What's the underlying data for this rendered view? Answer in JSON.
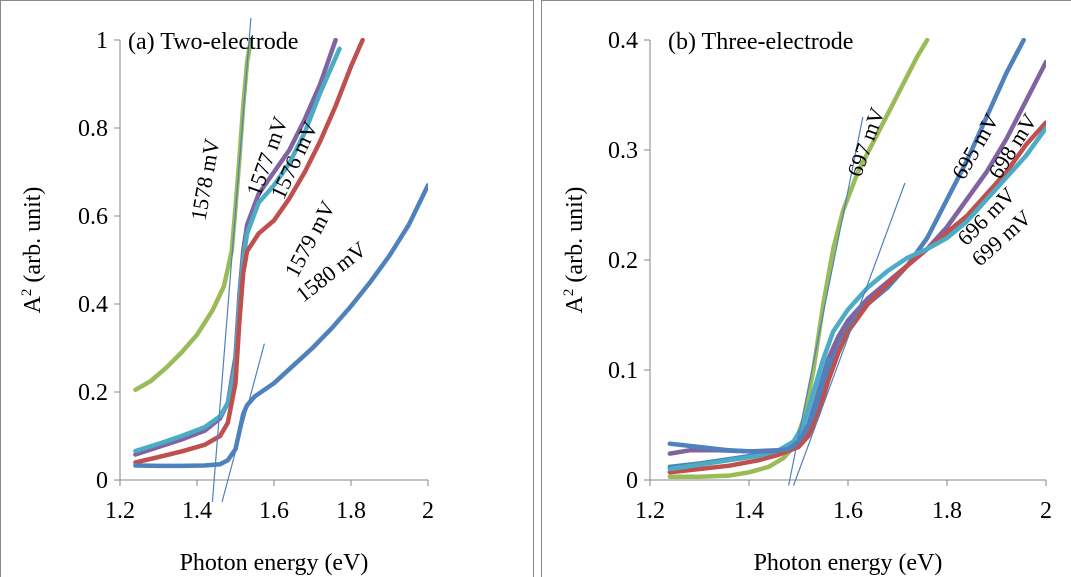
{
  "chart_data": [
    {
      "type": "line",
      "title": "(a) Two-electrode",
      "xlabel": "Photon energy (eV)",
      "ylabel_main": "A",
      "ylabel_sup": "2",
      "ylabel_rest": " (arb. unit)",
      "xlim": [
        1.2,
        2.0
      ],
      "ylim": [
        0,
        1.0
      ],
      "xticks": [
        1.2,
        1.4,
        1.6,
        1.8,
        2.0
      ],
      "xticklabels": [
        "1.2",
        "1.4",
        "1.6",
        "1.8",
        "2"
      ],
      "yticks": [
        0,
        0.2,
        0.4,
        0.6,
        0.8,
        1.0
      ],
      "yticklabels": [
        "0",
        "0.2",
        "0.4",
        "0.6",
        "0.8",
        "1"
      ],
      "grid": false,
      "series": [
        {
          "name": "1578 mV",
          "color": "#9bbb59",
          "x": [
            1.24,
            1.28,
            1.32,
            1.36,
            1.4,
            1.44,
            1.47,
            1.49,
            1.5,
            1.51,
            1.52,
            1.53,
            1.54
          ],
          "y": [
            0.205,
            0.225,
            0.255,
            0.29,
            0.33,
            0.385,
            0.44,
            0.52,
            0.62,
            0.73,
            0.85,
            0.95,
            1.0
          ]
        },
        {
          "name": "1577 mV",
          "color": "#8064a2",
          "x": [
            1.24,
            1.3,
            1.36,
            1.42,
            1.46,
            1.48,
            1.5,
            1.51,
            1.52,
            1.53,
            1.56,
            1.6,
            1.64,
            1.68,
            1.72,
            1.76
          ],
          "y": [
            0.058,
            0.075,
            0.092,
            0.112,
            0.14,
            0.175,
            0.28,
            0.42,
            0.52,
            0.58,
            0.65,
            0.7,
            0.75,
            0.82,
            0.9,
            1.0
          ]
        },
        {
          "name": "1576 mV",
          "color": "#4bacc6",
          "x": [
            1.24,
            1.3,
            1.36,
            1.42,
            1.46,
            1.48,
            1.5,
            1.51,
            1.52,
            1.53,
            1.56,
            1.6,
            1.64,
            1.68,
            1.72,
            1.77
          ],
          "y": [
            0.066,
            0.082,
            0.1,
            0.12,
            0.145,
            0.175,
            0.26,
            0.4,
            0.5,
            0.56,
            0.63,
            0.67,
            0.72,
            0.79,
            0.88,
            0.98
          ]
        },
        {
          "name": "1579 mV",
          "color": "#c0504d",
          "x": [
            1.24,
            1.3,
            1.36,
            1.42,
            1.46,
            1.48,
            1.5,
            1.51,
            1.52,
            1.53,
            1.56,
            1.6,
            1.64,
            1.68,
            1.72,
            1.76,
            1.8,
            1.83
          ],
          "y": [
            0.04,
            0.052,
            0.065,
            0.08,
            0.1,
            0.13,
            0.22,
            0.36,
            0.47,
            0.52,
            0.56,
            0.59,
            0.64,
            0.7,
            0.77,
            0.85,
            0.94,
            1.0
          ]
        },
        {
          "name": "1580 mV",
          "color": "#4f81bd",
          "x": [
            1.24,
            1.3,
            1.36,
            1.42,
            1.46,
            1.48,
            1.5,
            1.51,
            1.52,
            1.53,
            1.55,
            1.6,
            1.65,
            1.7,
            1.75,
            1.8,
            1.85,
            1.9,
            1.95,
            2.0
          ],
          "y": [
            0.033,
            0.032,
            0.032,
            0.033,
            0.036,
            0.045,
            0.07,
            0.11,
            0.15,
            0.17,
            0.19,
            0.22,
            0.26,
            0.3,
            0.345,
            0.395,
            0.45,
            0.51,
            0.58,
            0.67
          ]
        }
      ],
      "tangents": [
        {
          "color": "#4f81bd",
          "x": [
            1.44,
            1.54
          ],
          "y": [
            -0.05,
            1.05
          ]
        },
        {
          "color": "#4f81bd",
          "x": [
            1.465,
            1.575
          ],
          "y": [
            -0.05,
            0.31
          ]
        }
      ],
      "annotations": [
        {
          "text": "1578 mV",
          "x": 1.44,
          "y": 0.68,
          "rotate": -80
        },
        {
          "text": "1577 mV",
          "x": 1.6,
          "y": 0.73,
          "rotate": -70
        },
        {
          "text": "1576 mV",
          "x": 1.67,
          "y": 0.72,
          "rotate": -65
        },
        {
          "text": "1579 mV",
          "x": 1.71,
          "y": 0.54,
          "rotate": -62
        },
        {
          "text": "1580 mV",
          "x": 1.76,
          "y": 0.46,
          "rotate": -38
        }
      ]
    },
    {
      "type": "line",
      "title": "(b) Three-electrode",
      "xlabel": "Photon energy (eV)",
      "ylabel_main": "A",
      "ylabel_sup": "2",
      "ylabel_rest": " (arb. unit)",
      "xlim": [
        1.2,
        2.0
      ],
      "ylim": [
        0,
        0.4
      ],
      "xticks": [
        1.2,
        1.4,
        1.6,
        1.8,
        2.0
      ],
      "xticklabels": [
        "1.2",
        "1.4",
        "1.6",
        "1.8",
        "2"
      ],
      "yticks": [
        0,
        0.1,
        0.2,
        0.3,
        0.4
      ],
      "yticklabels": [
        "0",
        "0.1",
        "0.2",
        "0.3",
        "0.4"
      ],
      "grid": false,
      "series": [
        {
          "name": "697 mV",
          "color": "#9bbb59",
          "x": [
            1.24,
            1.3,
            1.36,
            1.4,
            1.44,
            1.47,
            1.49,
            1.51,
            1.53,
            1.55,
            1.57,
            1.59,
            1.62,
            1.66,
            1.7,
            1.74,
            1.76
          ],
          "y": [
            0.003,
            0.003,
            0.004,
            0.007,
            0.012,
            0.02,
            0.03,
            0.055,
            0.1,
            0.16,
            0.21,
            0.245,
            0.28,
            0.315,
            0.35,
            0.385,
            0.4
          ]
        },
        {
          "name": "695 mV",
          "color": "#4f81bd",
          "x": [
            1.24,
            1.3,
            1.36,
            1.42,
            1.46,
            1.5,
            1.52,
            1.54,
            1.56,
            1.58,
            1.6,
            1.64,
            1.68,
            1.72,
            1.76,
            1.8,
            1.84,
            1.88,
            1.92,
            1.955
          ],
          "y": [
            0.012,
            0.015,
            0.019,
            0.023,
            0.027,
            0.032,
            0.045,
            0.07,
            0.1,
            0.125,
            0.14,
            0.16,
            0.175,
            0.195,
            0.22,
            0.255,
            0.29,
            0.33,
            0.37,
            0.4
          ]
        },
        {
          "name": "698 mV",
          "color": "#8064a2",
          "x": [
            1.24,
            1.28,
            1.34,
            1.4,
            1.46,
            1.5,
            1.52,
            1.54,
            1.56,
            1.58,
            1.6,
            1.64,
            1.68,
            1.72,
            1.76,
            1.8,
            1.84,
            1.88,
            1.92,
            1.96,
            2.0
          ],
          "y": [
            0.024,
            0.027,
            0.027,
            0.026,
            0.027,
            0.035,
            0.05,
            0.08,
            0.11,
            0.13,
            0.145,
            0.165,
            0.18,
            0.195,
            0.21,
            0.23,
            0.255,
            0.28,
            0.31,
            0.345,
            0.38
          ]
        },
        {
          "name": "696 mV",
          "color": "#c0504d",
          "x": [
            1.24,
            1.3,
            1.36,
            1.42,
            1.46,
            1.5,
            1.52,
            1.54,
            1.56,
            1.58,
            1.6,
            1.64,
            1.68,
            1.72,
            1.76,
            1.8,
            1.84,
            1.88,
            1.92,
            1.96,
            2.0
          ],
          "y": [
            0.007,
            0.01,
            0.013,
            0.018,
            0.023,
            0.03,
            0.04,
            0.06,
            0.09,
            0.115,
            0.135,
            0.16,
            0.178,
            0.195,
            0.21,
            0.225,
            0.24,
            0.26,
            0.28,
            0.305,
            0.325
          ]
        },
        {
          "name": "699 mV",
          "color": "#4bacc6",
          "x": [
            1.24,
            1.3,
            1.36,
            1.42,
            1.46,
            1.49,
            1.51,
            1.53,
            1.55,
            1.57,
            1.6,
            1.64,
            1.68,
            1.72,
            1.76,
            1.8,
            1.84,
            1.88,
            1.92,
            1.96,
            2.0
          ],
          "y": [
            0.01,
            0.014,
            0.018,
            0.022,
            0.027,
            0.035,
            0.05,
            0.08,
            0.11,
            0.135,
            0.155,
            0.175,
            0.19,
            0.202,
            0.21,
            0.22,
            0.235,
            0.255,
            0.275,
            0.295,
            0.32
          ]
        },
        {
          "name": "",
          "color": "#4f81bd",
          "x": [
            1.24,
            1.28,
            1.32,
            1.36,
            1.4,
            1.44,
            1.48,
            1.5,
            1.52,
            1.54,
            1.56
          ],
          "y": [
            0.033,
            0.031,
            0.029,
            0.027,
            0.026,
            0.026,
            0.028,
            0.035,
            0.05,
            0.08,
            0.11
          ]
        }
      ],
      "tangents": [
        {
          "color": "#4f81bd",
          "x": [
            1.48,
            1.63
          ],
          "y": [
            -0.005,
            0.33
          ]
        },
        {
          "color": "#4f81bd",
          "x": [
            1.49,
            1.715
          ],
          "y": [
            -0.005,
            0.27
          ]
        }
      ],
      "annotations": [
        {
          "text": "697 mV",
          "x": 1.65,
          "y": 0.305,
          "rotate": -70
        },
        {
          "text": "695 mV",
          "x": 1.87,
          "y": 0.3,
          "rotate": -60
        },
        {
          "text": "698 mV",
          "x": 1.945,
          "y": 0.3,
          "rotate": -58
        },
        {
          "text": "696 mV",
          "x": 1.89,
          "y": 0.235,
          "rotate": -45
        },
        {
          "text": "699 mV",
          "x": 1.92,
          "y": 0.215,
          "rotate": -42
        }
      ]
    }
  ]
}
